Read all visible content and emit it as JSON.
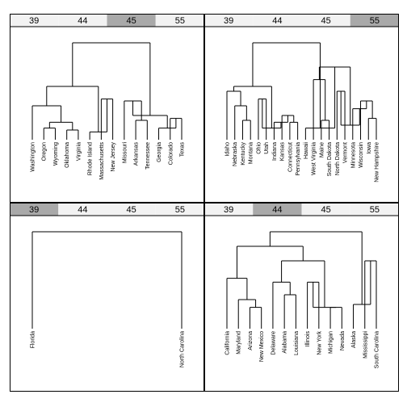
{
  "colors": {
    "strip_bg": "#f2f2f2",
    "strip_highlight": "#a9a9a9",
    "line": "#000000",
    "panel_border": "#000000"
  },
  "chart_data": [
    {
      "type": "dendrogram",
      "panel": "top-left",
      "strip_labels": [
        "39",
        "44",
        "45",
        "55"
      ],
      "highlighted_strip": 2,
      "leaves": [
        "Washington",
        "Oregon",
        "Wyoming",
        "Oklahoma",
        "Virginia",
        "Rhode Island",
        "Massachusetts",
        "New Jersey",
        "Missouri",
        "Arkansas",
        "Tennessee",
        "Georgia",
        "Colorado",
        "Texas"
      ],
      "tree": [
        [
          [
            0,
            [
              [
                1,
                2
              ],
              [
                3,
                4
              ]
            ]
          ],
          [
            5,
            [
              6,
              7
            ]
          ]
        ],
        [
          [
            8,
            [
              9,
              10
            ]
          ],
          [
            11,
            [
              12,
              13
            ]
          ]
        ]
      ],
      "merge_heights": [
        1.0,
        0.55,
        0.35,
        0.18,
        0.12,
        0.1,
        0.08,
        0.42,
        0.25,
        0.4,
        0.2,
        0.12,
        0.22,
        0.12
      ]
    },
    {
      "type": "dendrogram",
      "panel": "top-right",
      "strip_labels": [
        "39",
        "44",
        "45",
        "55"
      ],
      "highlighted_strip": 3,
      "leaves": [
        "Idaho",
        "Nebraska",
        "Kentucky",
        "Montana",
        "Ohio",
        "Utah",
        "Indiana",
        "Kansas",
        "Connecticut",
        "Pennsylvania",
        "Hawaii",
        "West Virginia",
        "Maine",
        "South Dakota",
        "North Dakota",
        "Vermont",
        "Minnesota",
        "Wisconsin",
        "Iowa",
        "New Hampshire"
      ],
      "tree": [
        [
          [
            [
              0,
              [
                1,
                [
                  2,
                  3
                ]
              ]
            ],
            [
              [
                4,
                5
              ],
              [
                6,
                [
                  7,
                  [
                    8,
                    9
                  ]
                ]
              ]
            ]
          ]
        ],
        [
          10,
          [
            [
              11,
              [
                12,
                13
              ]
            ],
            [
              [
                14,
                15
              ],
              [
                16,
                [
                  17,
                  [
                    18,
                    19
                  ]
                ]
              ]
            ]
          ]
        ]
      ],
      "merge_heights": [
        1.0,
        0.55,
        0.5,
        0.35,
        0.2,
        0.12,
        0.42,
        0.18,
        0.25,
        0.18,
        0.12,
        0.75,
        0.62,
        0.2,
        0.15,
        0.5,
        0.32,
        0.4,
        0.22,
        0.12,
        0.07
      ]
    },
    {
      "type": "dendrogram",
      "panel": "bottom-left",
      "strip_labels": [
        "39",
        "44",
        "45",
        "55"
      ],
      "highlighted_strip": 0,
      "leaves": [
        "Florida",
        "North Carolina"
      ],
      "tree": [
        0,
        1
      ],
      "merge_heights": [
        1.0
      ]
    },
    {
      "type": "dendrogram",
      "panel": "bottom-right",
      "strip_labels": [
        "39",
        "44",
        "45",
        "55"
      ],
      "highlighted_strip": 1,
      "leaves": [
        "California",
        "Maryland",
        "Arizona",
        "New Mexico",
        "Delaware",
        "Alabama",
        "Louisiana",
        "Illinois",
        "New York",
        "Michigan",
        "Nevada",
        "Alaska",
        "Mississippi",
        "South Carolina"
      ],
      "tree": [
        [
          [
            0,
            [
              1,
              [
                2,
                3
              ]
            ]
          ],
          [
            [
              4,
              [
                5,
                6
              ]
            ],
            [
              [
                7,
                8
              ],
              [
                9,
                10
              ]
            ]
          ]
        ],
        [
          11,
          [
            12,
            13
          ]
        ]
      ],
      "merge_heights": [
        1.0,
        0.85,
        0.52,
        0.3,
        0.22,
        0.7,
        0.48,
        0.35,
        0.22,
        0.48,
        0.22,
        0.25,
        0.7,
        0.42
      ]
    }
  ]
}
